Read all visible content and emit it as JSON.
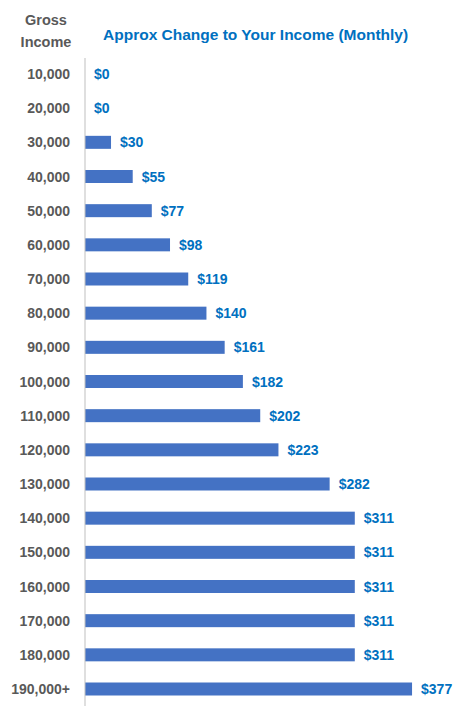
{
  "chart_data": {
    "type": "bar",
    "orientation": "horizontal",
    "title": "Approx Change to Your Income (Monthly)",
    "ylabel": "Gross Income",
    "categories": [
      "10,000",
      "20,000",
      "30,000",
      "40,000",
      "50,000",
      "60,000",
      "70,000",
      "80,000",
      "90,000",
      "100,000",
      "110,000",
      "120,000",
      "130,000",
      "140,000",
      "150,000",
      "160,000",
      "170,000",
      "180,000",
      "190,000+"
    ],
    "values": [
      0,
      0,
      30,
      55,
      77,
      98,
      119,
      140,
      161,
      182,
      202,
      223,
      282,
      311,
      311,
      311,
      311,
      311,
      377
    ],
    "value_labels": [
      "$0",
      "$0",
      "$30",
      "$55",
      "$77",
      "$98",
      "$119",
      "$140",
      "$161",
      "$182",
      "$202",
      "$223",
      "$282",
      "$311",
      "$311",
      "$311",
      "$311",
      "$311",
      "$377"
    ],
    "color": "#4472c4",
    "xlim": [
      0,
      400
    ],
    "grid": false,
    "data_labels": true,
    "tick_labels": "y"
  }
}
